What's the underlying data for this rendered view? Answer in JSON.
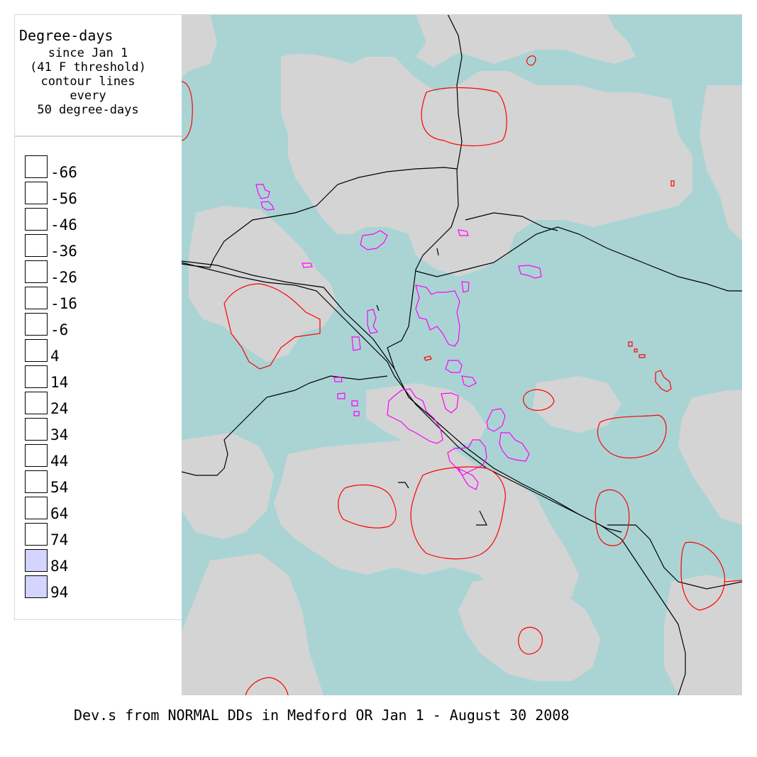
{
  "legend": {
    "title": "Degree-days",
    "subtitle_lines": [
      "since Jan 1",
      "(41 F threshold)",
      "contour lines",
      "every",
      "50 degree-days"
    ],
    "items": [
      {
        "label": "-66",
        "color": "#ffffff"
      },
      {
        "label": "-56",
        "color": "#ffffff"
      },
      {
        "label": "-46",
        "color": "#ffffff"
      },
      {
        "label": "-36",
        "color": "#ffffff"
      },
      {
        "label": "-26",
        "color": "#ffffff"
      },
      {
        "label": "-16",
        "color": "#ffffff"
      },
      {
        "label": "-6",
        "color": "#ffffff"
      },
      {
        "label": "4",
        "color": "#ffffff"
      },
      {
        "label": "14",
        "color": "#ffffff"
      },
      {
        "label": "24",
        "color": "#ffffff"
      },
      {
        "label": "34",
        "color": "#ffffff"
      },
      {
        "label": "44",
        "color": "#ffffff"
      },
      {
        "label": "54",
        "color": "#ffffff"
      },
      {
        "label": "64",
        "color": "#ffffff"
      },
      {
        "label": "74",
        "color": "#ffffff"
      },
      {
        "label": "84",
        "color": "#d4d4ff"
      },
      {
        "label": "94",
        "color": "#d4d4ff"
      }
    ]
  },
  "map": {
    "colors": {
      "teal_region": "#aad4d4",
      "gray_region": "#d4d4d4",
      "contour": "#ff0000",
      "urban_outline": "#ff00ff",
      "road": "#000000"
    }
  },
  "caption": "Dev.s from NORMAL DDs in Medford OR Jan 1 - August 30 2008"
}
